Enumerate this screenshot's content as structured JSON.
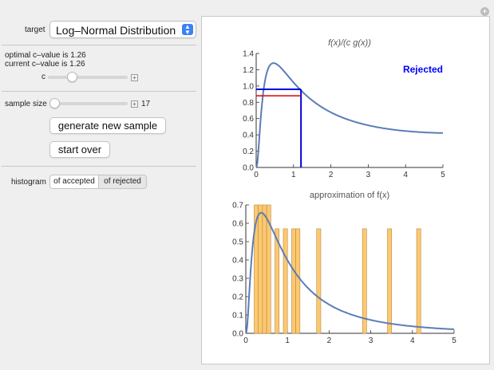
{
  "controls": {
    "target_label": "target",
    "target_value": "Log–Normal Distribution",
    "optimal_text": "optimal c–value is 1.26",
    "current_text": "current c–value is 1.26",
    "c_label": "c",
    "c_slider_fraction": 0.28,
    "sample_size_label": "sample size",
    "sample_size_fraction": 0.0,
    "sample_size_value": "17",
    "generate_button": "generate new sample",
    "start_over_button": "start over",
    "histogram_label": "histogram",
    "histogram_options": [
      "of accepted",
      "of rejected"
    ],
    "histogram_selected": "of accepted"
  },
  "chart_data": [
    {
      "type": "line",
      "title": "f(x)/(c g(x))",
      "annotation": "Rejected",
      "annotation_color": "#0000ff",
      "xlim": [
        0,
        5
      ],
      "ylim": [
        0,
        1.4
      ],
      "xticks": [
        0,
        1,
        2,
        3,
        4,
        5
      ],
      "yticks": [
        0.0,
        0.2,
        0.4,
        0.6,
        0.8,
        1.0,
        1.2,
        1.4
      ],
      "curve_color": "#5b7db8",
      "blue_box": {
        "x": 1.2,
        "y": 0.96,
        "color": "#0000dd"
      },
      "red_line": {
        "y": 0.88,
        "color": "#dd0000"
      }
    },
    {
      "type": "bar",
      "title": "approximation of f(x)",
      "xlim": [
        0,
        5
      ],
      "ylim": [
        0,
        0.7
      ],
      "xticks": [
        0,
        1,
        2,
        3,
        4,
        5
      ],
      "yticks": [
        0.0,
        0.1,
        0.2,
        0.3,
        0.4,
        0.5,
        0.6,
        0.7
      ],
      "bar_color": "#fdc96f",
      "curve_color": "#5b7db8",
      "bars": [
        {
          "x": 0.2,
          "h": 0.7
        },
        {
          "x": 0.3,
          "h": 0.7
        },
        {
          "x": 0.4,
          "h": 0.7
        },
        {
          "x": 0.5,
          "h": 0.7
        },
        {
          "x": 0.7,
          "h": 0.57
        },
        {
          "x": 0.9,
          "h": 0.57
        },
        {
          "x": 1.1,
          "h": 0.57
        },
        {
          "x": 1.2,
          "h": 0.57
        },
        {
          "x": 1.7,
          "h": 0.57
        },
        {
          "x": 2.8,
          "h": 0.57
        },
        {
          "x": 3.4,
          "h": 0.57
        },
        {
          "x": 4.1,
          "h": 0.57
        }
      ],
      "bar_width": 0.1
    }
  ]
}
